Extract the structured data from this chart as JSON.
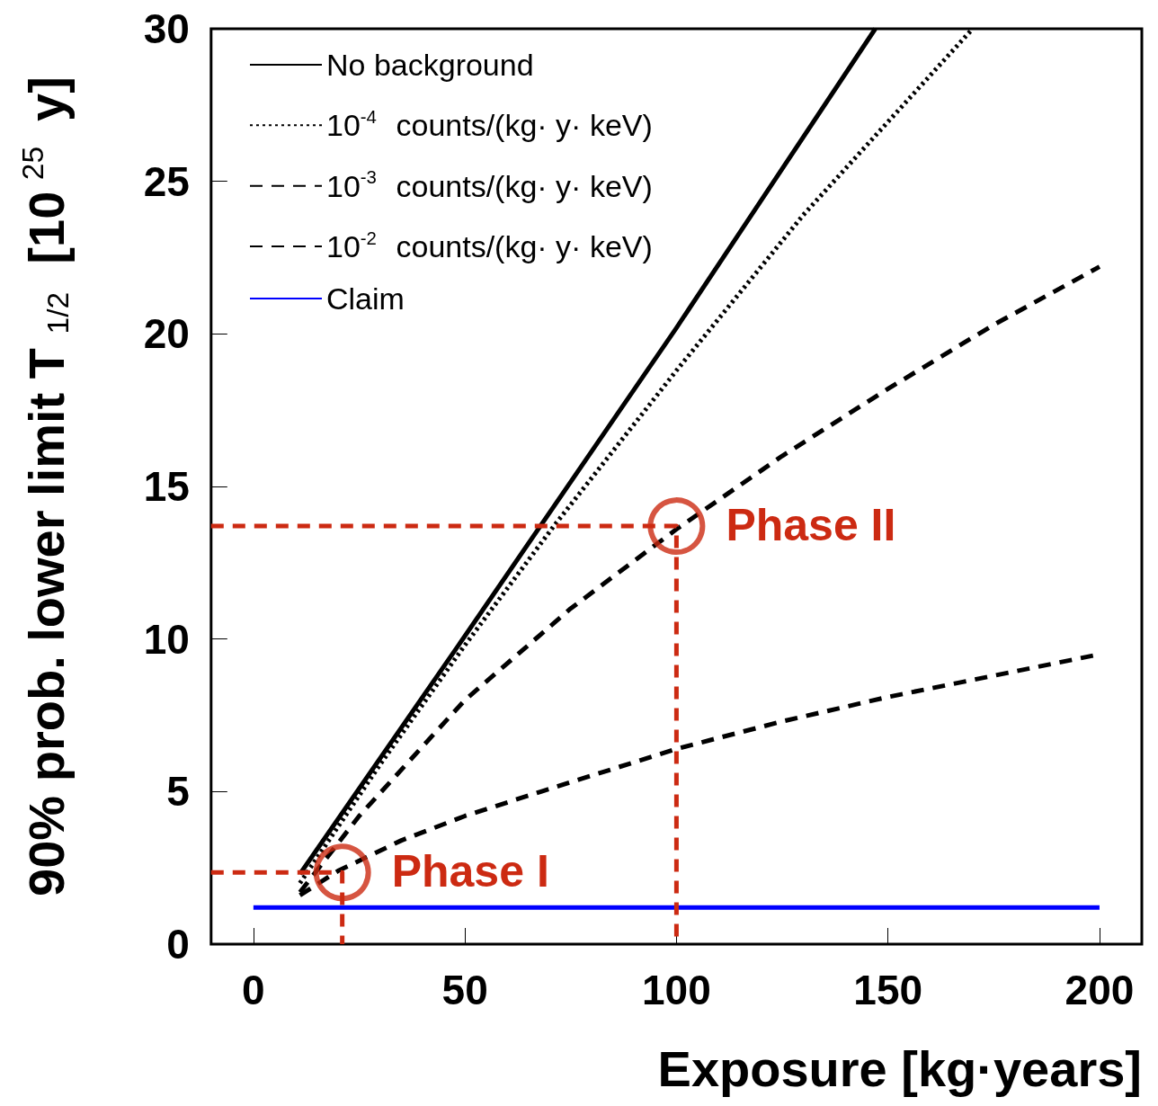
{
  "chart_data": {
    "type": "line",
    "xlabel": "Exposure [kg·years]",
    "ylabel": "90% prob. lower limit T$_{1/2}$ [10$^{25}$ y]",
    "xlim": [
      -10,
      210
    ],
    "xticks": [
      0,
      50,
      100,
      150,
      200
    ],
    "ylim": [
      0,
      30
    ],
    "yticks": [
      0,
      5,
      10,
      15,
      20,
      25,
      30
    ],
    "grid": false,
    "legend": "top left",
    "marker": "none",
    "series": [
      {
        "name": "No background",
        "color": "#000000",
        "line_style": "solid",
        "x": [
          11,
          50,
          100,
          147
        ],
        "values": [
          2.3,
          10.1,
          20.2,
          30
        ]
      },
      {
        "name": "10$^{-4}$ counts/(kg· y· keV)",
        "color": "#000000",
        "line_style": "dotted",
        "x": [
          11,
          30,
          50,
          71,
          100,
          130,
          170
        ],
        "values": [
          2.0,
          5.9,
          9.8,
          13.7,
          18.8,
          23.9,
          30
        ]
      },
      {
        "name": "10$^{-3}$ counts/(kg· y· keV)",
        "color": "#000000",
        "line_style": "dashed",
        "x": [
          11,
          25,
          50,
          75,
          100,
          125,
          150,
          175,
          200
        ],
        "values": [
          1.7,
          4.2,
          8.0,
          11.0,
          13.6,
          16.0,
          18.2,
          20.3,
          22.2
        ]
      },
      {
        "name": "10$^{-2}$ counts/(kg· y· keV)",
        "color": "#000000",
        "line_style": "dashed",
        "x": [
          11,
          20,
          35,
          50,
          68,
          100,
          125,
          150,
          175,
          200
        ],
        "values": [
          1.6,
          2.4,
          3.4,
          4.2,
          5.0,
          6.4,
          7.3,
          8.1,
          8.8,
          9.5
        ]
      },
      {
        "name": "Claim",
        "color": "#0000ff",
        "line_style": "solid",
        "x": [
          0,
          200
        ],
        "values": [
          1.2,
          1.2
        ]
      },
      {
        "color": "#cc2a12",
        "line_style": "dashed",
        "x": [
          -10,
          21,
          21
        ],
        "values": [
          2.35,
          2.35,
          0
        ]
      },
      {
        "color": "#cc2a12",
        "line_style": "dashed",
        "x": [
          -10,
          100,
          100
        ],
        "values": [
          13.7,
          13.7,
          0
        ]
      },
      {
        "type": "scatter",
        "color": "#cc2a12",
        "marker": "circle",
        "x": [
          21,
          100
        ],
        "values": [
          2.35,
          13.7
        ]
      }
    ],
    "annotations": [
      {
        "text": "Phase I",
        "x": 21,
        "y": 2.35
      },
      {
        "text": "Phase II",
        "x": 100,
        "y": 13.7
      }
    ]
  }
}
